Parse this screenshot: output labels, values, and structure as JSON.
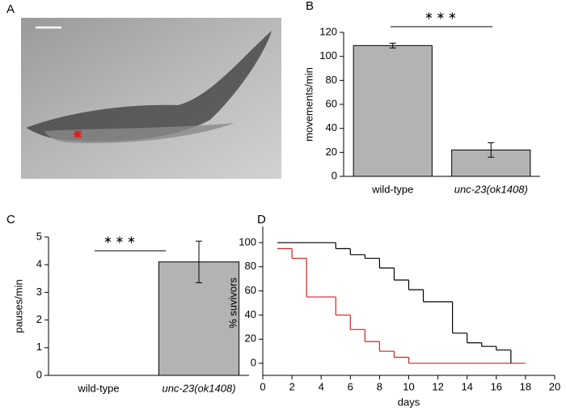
{
  "panel_a": {
    "label": "A"
  },
  "chart_data": [
    {
      "type": "bar",
      "label": "B",
      "ylabel": "movements/min",
      "significance": "∗ ∗ ∗",
      "categories": [
        "wild-type",
        "unc-23(ok1408)"
      ],
      "values": [
        109,
        22
      ],
      "errors": [
        2,
        6
      ],
      "color": "#b3b3b3",
      "ylim": [
        0,
        120
      ],
      "yticks": [
        0,
        20,
        40,
        60,
        80,
        100,
        120
      ]
    },
    {
      "type": "bar",
      "label": "C",
      "ylabel": "pauses/min",
      "significance": "∗ ∗ ∗",
      "categories": [
        "wild-type",
        "unc-23(ok1408)"
      ],
      "values": [
        0,
        4.1
      ],
      "errors": [
        0,
        0.75
      ],
      "color": "#b3b3b3",
      "ylim": [
        0,
        5
      ],
      "yticks": [
        0,
        1,
        2,
        3,
        4,
        5
      ]
    },
    {
      "type": "step",
      "label": "D",
      "xlabel": "days",
      "ylabel": "% suvivors",
      "series": [
        {
          "color": "#000000",
          "x": [
            1,
            5,
            6,
            7,
            8,
            9,
            10,
            11,
            13,
            14,
            15,
            16,
            17
          ],
          "values": [
            100,
            95,
            90,
            87,
            79,
            69,
            61,
            51,
            25,
            17,
            14,
            11,
            0
          ]
        },
        {
          "color": "#d62020",
          "x": [
            1,
            2,
            3,
            5,
            6,
            7,
            8,
            9,
            10,
            18
          ],
          "values": [
            95,
            87,
            55,
            40,
            28,
            18,
            10,
            5,
            0,
            0
          ]
        }
      ],
      "xlim": [
        0,
        20
      ],
      "xticks": [
        0,
        2,
        4,
        6,
        8,
        10,
        12,
        14,
        16,
        18,
        20
      ],
      "ylim": [
        -10,
        110
      ],
      "yticks": [
        0,
        20,
        40,
        60,
        80,
        100
      ]
    }
  ]
}
